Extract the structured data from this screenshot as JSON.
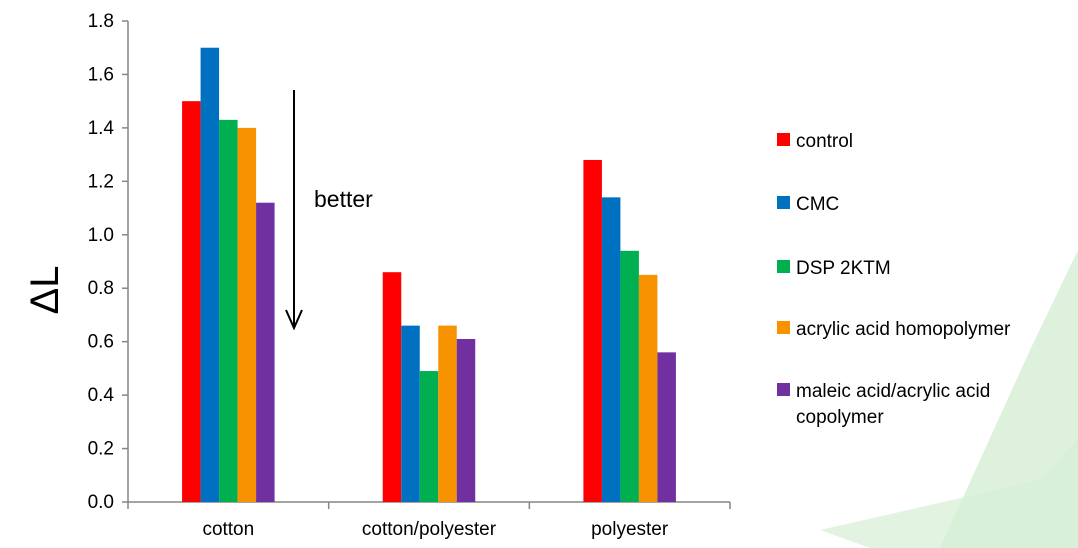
{
  "chart_data": {
    "type": "bar",
    "title": "",
    "xlabel": "",
    "ylabel": "ΔL",
    "ylim": [
      0,
      1.8
    ],
    "yticks": [
      "0.0",
      "0.2",
      "0.4",
      "0.6",
      "0.8",
      "1.0",
      "1.2",
      "1.4",
      "1.6",
      "1.8"
    ],
    "categories": [
      "cotton",
      "cotton/polyester",
      "polyester"
    ],
    "series": [
      {
        "name": "control",
        "color": "#ff0000",
        "values": [
          1.5,
          0.86,
          1.28
        ]
      },
      {
        "name": "CMC",
        "color": "#0070c0",
        "values": [
          1.7,
          0.66,
          1.14
        ]
      },
      {
        "name": "DSP 2KTM",
        "color": "#00b050",
        "values": [
          1.43,
          0.49,
          0.94
        ]
      },
      {
        "name": "acrylic acid homopolymer",
        "color": "#f79200",
        "values": [
          1.4,
          0.66,
          0.85
        ]
      },
      {
        "name": "maleic acid/acrylic acid copolymer",
        "color": "#7030a0",
        "values": [
          1.12,
          0.61,
          0.56
        ]
      }
    ],
    "legend_position": "right",
    "grid": false,
    "annotations": [
      {
        "text": "better",
        "arrow": "down"
      }
    ]
  }
}
